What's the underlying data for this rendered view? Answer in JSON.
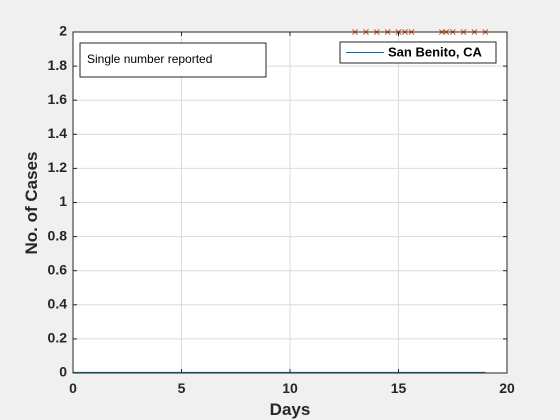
{
  "chart_data": {
    "type": "line",
    "title": "",
    "xlabel": "Days",
    "ylabel": "No. of Cases",
    "xlim": [
      0,
      20
    ],
    "ylim": [
      0,
      2
    ],
    "xticks": [
      0,
      5,
      10,
      15,
      20
    ],
    "yticks": [
      0,
      0.2,
      0.4,
      0.6,
      0.8,
      1,
      1.2,
      1.4,
      1.6,
      1.8,
      2
    ],
    "grid": true,
    "legend_position": "top-right",
    "annotation": "Single number reported",
    "series": [
      {
        "name": "San Benito, CA",
        "kind": "line",
        "color": "#0072bd",
        "x": [
          0,
          1,
          2,
          3,
          4,
          5,
          6,
          7,
          8,
          9,
          10,
          11,
          12,
          13,
          14,
          15,
          16,
          17,
          18,
          19
        ],
        "y": [
          0,
          0,
          0,
          0,
          0,
          0,
          0,
          0,
          0,
          0,
          0,
          0,
          0,
          0,
          0,
          0,
          0,
          0,
          0,
          0
        ]
      },
      {
        "kind": "markers",
        "marker": "x",
        "color": "#d95319",
        "x": [
          13,
          13.5,
          14,
          14.5,
          15,
          15.3,
          15.6,
          17,
          17.2,
          17.5,
          18,
          18.5,
          19
        ],
        "y": [
          2,
          2,
          2,
          2,
          2,
          2,
          2,
          2,
          2,
          2,
          2,
          2,
          2
        ]
      }
    ]
  }
}
